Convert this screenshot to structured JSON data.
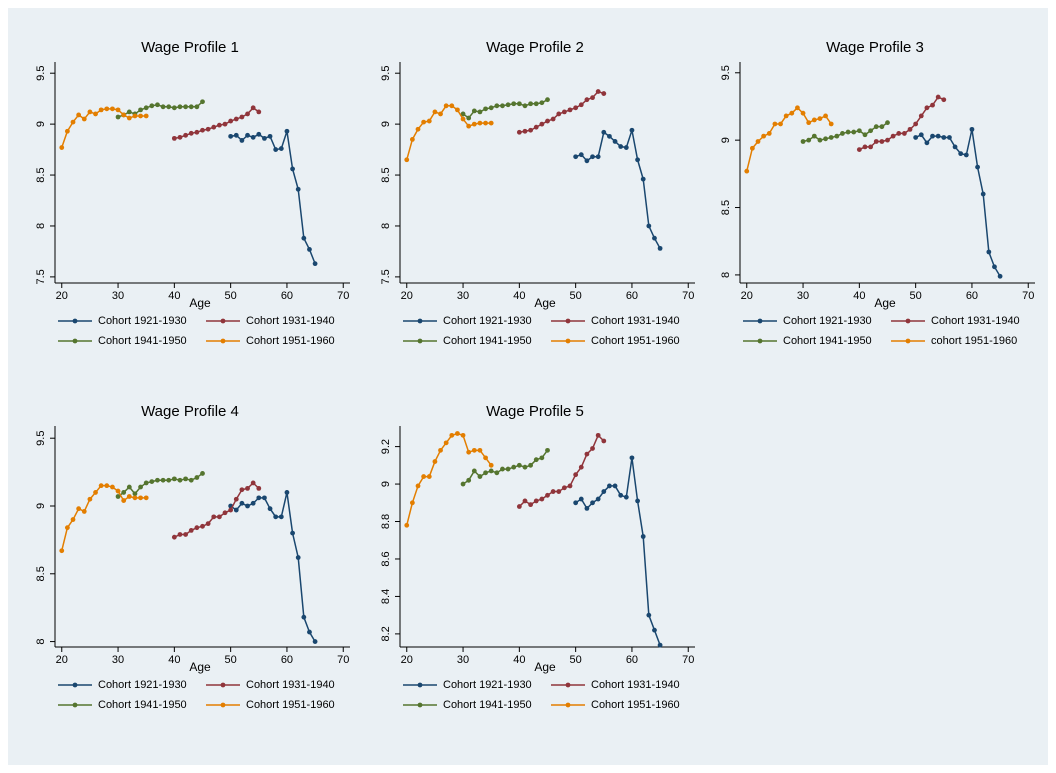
{
  "chart_data": [
    {
      "type": "line",
      "title": "Wage Profile 1",
      "xlabel": "Age",
      "xlim": [
        18.8,
        71.2
      ],
      "ylim": [
        7.44,
        9.61
      ],
      "xticks": [
        20,
        30,
        40,
        50,
        60,
        70
      ],
      "yticks": [
        9.5,
        9,
        8.5,
        8,
        7.5
      ],
      "series": [
        {
          "name": "Cohort 1921-1930",
          "color": "#1a476f",
          "x": [
            50,
            51,
            52,
            53,
            54,
            55,
            56,
            57,
            58,
            59,
            60,
            61,
            62,
            63,
            64,
            65
          ],
          "values": [
            8.88,
            8.89,
            8.84,
            8.89,
            8.87,
            8.9,
            8.86,
            8.88,
            8.75,
            8.76,
            8.93,
            8.56,
            8.36,
            7.88,
            7.77,
            7.63
          ]
        },
        {
          "name": "Cohort 1931-1940",
          "color": "#90353b",
          "x": [
            40,
            41,
            42,
            43,
            44,
            45,
            46,
            47,
            48,
            49,
            50,
            51,
            52,
            53,
            54,
            55
          ],
          "values": [
            8.86,
            8.87,
            8.89,
            8.91,
            8.92,
            8.94,
            8.95,
            8.97,
            8.99,
            9.0,
            9.03,
            9.05,
            9.07,
            9.1,
            9.16,
            9.12
          ]
        },
        {
          "name": "Cohort 1941-1950",
          "color": "#55752f",
          "x": [
            30,
            31,
            32,
            33,
            34,
            35,
            36,
            37,
            38,
            39,
            40,
            41,
            42,
            43,
            44,
            45
          ],
          "values": [
            9.07,
            9.09,
            9.12,
            9.1,
            9.14,
            9.16,
            9.18,
            9.19,
            9.17,
            9.17,
            9.16,
            9.17,
            9.17,
            9.17,
            9.17,
            9.22
          ]
        },
        {
          "name": "Cohort 1951-1960",
          "color": "#e37e00",
          "x": [
            20,
            21,
            22,
            23,
            24,
            25,
            26,
            27,
            28,
            29,
            30,
            31,
            32,
            33,
            34,
            35
          ],
          "values": [
            8.77,
            8.93,
            9.02,
            9.09,
            9.05,
            9.12,
            9.1,
            9.14,
            9.15,
            9.15,
            9.14,
            9.09,
            9.06,
            9.08,
            9.08,
            9.08
          ]
        }
      ]
    },
    {
      "type": "line",
      "title": "Wage Profile 2",
      "xlabel": "Age",
      "xlim": [
        18.8,
        71.2
      ],
      "ylim": [
        7.44,
        9.61
      ],
      "xticks": [
        20,
        30,
        40,
        50,
        60,
        70
      ],
      "yticks": [
        9.5,
        9,
        8.5,
        8,
        7.5
      ],
      "series": [
        {
          "name": "Cohort 1921-1930",
          "color": "#1a476f",
          "x": [
            50,
            51,
            52,
            53,
            54,
            55,
            56,
            57,
            58,
            59,
            60,
            61,
            62,
            63,
            64,
            65
          ],
          "values": [
            8.68,
            8.7,
            8.64,
            8.68,
            8.68,
            8.92,
            8.88,
            8.83,
            8.78,
            8.77,
            8.94,
            8.65,
            8.46,
            8.0,
            7.88,
            7.78
          ]
        },
        {
          "name": "Cohort 1931-1940",
          "color": "#90353b",
          "x": [
            40,
            41,
            42,
            43,
            44,
            45,
            46,
            47,
            48,
            49,
            50,
            51,
            52,
            53,
            54,
            55
          ],
          "values": [
            8.92,
            8.93,
            8.94,
            8.97,
            9.0,
            9.03,
            9.05,
            9.1,
            9.12,
            9.14,
            9.16,
            9.19,
            9.24,
            9.26,
            9.32,
            9.3
          ]
        },
        {
          "name": "Cohort 1941-1950",
          "color": "#55752f",
          "x": [
            30,
            31,
            32,
            33,
            34,
            35,
            36,
            37,
            38,
            39,
            40,
            41,
            42,
            43,
            44,
            45
          ],
          "values": [
            9.1,
            9.06,
            9.13,
            9.12,
            9.15,
            9.16,
            9.18,
            9.18,
            9.19,
            9.2,
            9.2,
            9.18,
            9.2,
            9.2,
            9.21,
            9.24
          ]
        },
        {
          "name": "Cohort 1951-1960",
          "color": "#e37e00",
          "x": [
            20,
            21,
            22,
            23,
            24,
            25,
            26,
            27,
            28,
            29,
            30,
            31,
            32,
            33,
            34,
            35
          ],
          "values": [
            8.65,
            8.85,
            8.95,
            9.02,
            9.03,
            9.12,
            9.1,
            9.18,
            9.18,
            9.14,
            9.05,
            8.98,
            9.0,
            9.01,
            9.01,
            9.01
          ]
        }
      ]
    },
    {
      "type": "line",
      "title": "Wage Profile 3",
      "xlabel": "Age",
      "xlim": [
        18.8,
        71.2
      ],
      "ylim": [
        7.94,
        9.58
      ],
      "xticks": [
        20,
        30,
        40,
        50,
        60,
        70
      ],
      "yticks": [
        9.5,
        9,
        8.5,
        8
      ],
      "series": [
        {
          "name": "Cohort 1921-1930",
          "color": "#1a476f",
          "x": [
            50,
            51,
            52,
            53,
            54,
            55,
            56,
            57,
            58,
            59,
            60,
            61,
            62,
            63,
            64,
            65
          ],
          "values": [
            9.02,
            9.04,
            8.98,
            9.03,
            9.03,
            9.02,
            9.02,
            8.95,
            8.9,
            8.89,
            9.08,
            8.8,
            8.6,
            8.17,
            8.06,
            7.99
          ]
        },
        {
          "name": "Cohort 1931-1940",
          "color": "#90353b",
          "x": [
            40,
            41,
            42,
            43,
            44,
            45,
            46,
            47,
            48,
            49,
            50,
            51,
            52,
            53,
            54,
            55
          ],
          "values": [
            8.93,
            8.95,
            8.95,
            8.99,
            8.99,
            9.0,
            9.03,
            9.05,
            9.05,
            9.08,
            9.12,
            9.18,
            9.24,
            9.26,
            9.32,
            9.3
          ]
        },
        {
          "name": "Cohort 1941-1950",
          "color": "#55752f",
          "x": [
            30,
            31,
            32,
            33,
            34,
            35,
            36,
            37,
            38,
            39,
            40,
            41,
            42,
            43,
            44,
            45
          ],
          "values": [
            8.99,
            9.0,
            9.03,
            9.0,
            9.01,
            9.02,
            9.03,
            9.05,
            9.06,
            9.06,
            9.07,
            9.04,
            9.07,
            9.1,
            9.1,
            9.13
          ]
        },
        {
          "name": "cohort 1951-1960",
          "color": "#e37e00",
          "x": [
            20,
            21,
            22,
            23,
            24,
            25,
            26,
            27,
            28,
            29,
            30,
            31,
            32,
            33,
            34,
            35
          ],
          "values": [
            8.77,
            8.94,
            8.99,
            9.03,
            9.05,
            9.12,
            9.12,
            9.18,
            9.2,
            9.24,
            9.2,
            9.13,
            9.15,
            9.16,
            9.18,
            9.12
          ]
        }
      ]
    },
    {
      "type": "line",
      "title": "Wage Profile 4",
      "xlabel": "Age",
      "xlim": [
        18.8,
        71.2
      ],
      "ylim": [
        7.96,
        9.59
      ],
      "xticks": [
        20,
        30,
        40,
        50,
        60,
        70
      ],
      "yticks": [
        9.5,
        9,
        8.5,
        8
      ],
      "series": [
        {
          "name": "Cohort 1921-1930",
          "color": "#1a476f",
          "x": [
            50,
            51,
            52,
            53,
            54,
            55,
            56,
            57,
            58,
            59,
            60,
            61,
            62,
            63,
            64,
            65
          ],
          "values": [
            9.0,
            8.97,
            9.02,
            9.0,
            9.02,
            9.06,
            9.06,
            8.98,
            8.92,
            8.92,
            9.1,
            8.8,
            8.62,
            8.18,
            8.07,
            8.0
          ]
        },
        {
          "name": "Cohort 1931-1940",
          "color": "#90353b",
          "x": [
            40,
            41,
            42,
            43,
            44,
            45,
            46,
            47,
            48,
            49,
            50,
            51,
            52,
            53,
            54,
            55
          ],
          "values": [
            8.77,
            8.79,
            8.79,
            8.82,
            8.84,
            8.85,
            8.87,
            8.92,
            8.92,
            8.95,
            8.97,
            9.05,
            9.12,
            9.13,
            9.17,
            9.13
          ]
        },
        {
          "name": "Cohort 1941-1950",
          "color": "#55752f",
          "x": [
            30,
            31,
            32,
            33,
            34,
            35,
            36,
            37,
            38,
            39,
            40,
            41,
            42,
            43,
            44,
            45
          ],
          "values": [
            9.07,
            9.1,
            9.14,
            9.09,
            9.14,
            9.17,
            9.18,
            9.19,
            9.19,
            9.19,
            9.2,
            9.19,
            9.2,
            9.19,
            9.21,
            9.24
          ]
        },
        {
          "name": "Cohort 1951-1960",
          "color": "#e37e00",
          "x": [
            20,
            21,
            22,
            23,
            24,
            25,
            26,
            27,
            28,
            29,
            30,
            31,
            32,
            33,
            34,
            35
          ],
          "values": [
            8.67,
            8.84,
            8.9,
            8.98,
            8.96,
            9.05,
            9.1,
            9.15,
            9.15,
            9.14,
            9.11,
            9.04,
            9.07,
            9.06,
            9.06,
            9.06
          ]
        }
      ]
    },
    {
      "type": "line",
      "title": "Wage Profile 5",
      "xlabel": "Age",
      "xlim": [
        18.8,
        71.2
      ],
      "ylim": [
        8.13,
        9.31
      ],
      "xticks": [
        20,
        30,
        40,
        50,
        60,
        70
      ],
      "yticks": [
        9.2,
        9,
        8.8,
        8.6,
        8.4,
        8.2
      ],
      "series": [
        {
          "name": "Cohort 1921-1930",
          "color": "#1a476f",
          "x": [
            50,
            51,
            52,
            53,
            54,
            55,
            56,
            57,
            58,
            59,
            60,
            61,
            62,
            63,
            64,
            65
          ],
          "values": [
            8.9,
            8.92,
            8.87,
            8.9,
            8.92,
            8.96,
            8.99,
            8.99,
            8.94,
            8.93,
            9.14,
            8.91,
            8.72,
            8.3,
            8.22,
            8.14
          ]
        },
        {
          "name": "Cohort 1931-1940",
          "color": "#90353b",
          "x": [
            40,
            41,
            42,
            43,
            44,
            45,
            46,
            47,
            48,
            49,
            50,
            51,
            52,
            53,
            54,
            55
          ],
          "values": [
            8.88,
            8.91,
            8.89,
            8.91,
            8.92,
            8.94,
            8.96,
            8.96,
            8.98,
            8.99,
            9.05,
            9.09,
            9.16,
            9.19,
            9.26,
            9.23
          ]
        },
        {
          "name": "Cohort 1941-1950",
          "color": "#55752f",
          "x": [
            30,
            31,
            32,
            33,
            34,
            35,
            36,
            37,
            38,
            39,
            40,
            41,
            42,
            43,
            44,
            45
          ],
          "values": [
            9.0,
            9.02,
            9.07,
            9.04,
            9.06,
            9.07,
            9.06,
            9.08,
            9.08,
            9.09,
            9.1,
            9.09,
            9.1,
            9.13,
            9.14,
            9.18
          ]
        },
        {
          "name": "Cohort 1951-1960",
          "color": "#e37e00",
          "x": [
            20,
            21,
            22,
            23,
            24,
            25,
            26,
            27,
            28,
            29,
            30,
            31,
            32,
            33,
            34,
            35
          ],
          "values": [
            8.78,
            8.9,
            8.99,
            9.04,
            9.04,
            9.12,
            9.18,
            9.22,
            9.26,
            9.27,
            9.26,
            9.17,
            9.18,
            9.18,
            9.14,
            9.1
          ]
        }
      ]
    }
  ]
}
